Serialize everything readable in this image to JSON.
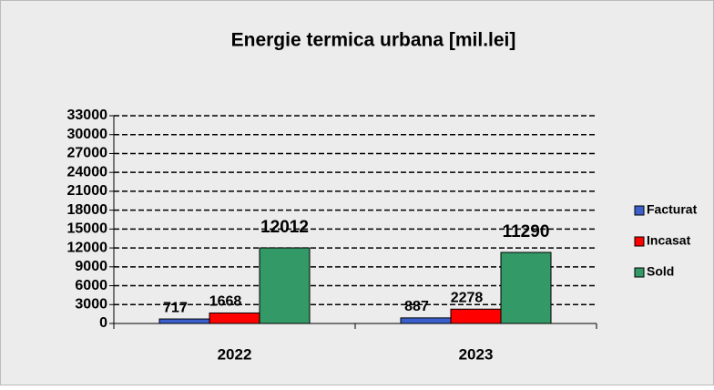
{
  "chart_data": {
    "type": "bar",
    "title": "Energie termica urbana [mil.lei]",
    "categories": [
      "2022",
      "2023"
    ],
    "series": [
      {
        "name": "Facturat",
        "color": "#3a5fcd",
        "values": [
          717,
          887
        ]
      },
      {
        "name": "Incasat",
        "color": "#ff0000",
        "values": [
          1668,
          2278
        ]
      },
      {
        "name": "Sold",
        "color": "#339966",
        "values": [
          12012,
          11290
        ]
      }
    ],
    "ylim": [
      0,
      33000
    ],
    "yticks": [
      0,
      3000,
      6000,
      9000,
      12000,
      15000,
      18000,
      21000,
      24000,
      27000,
      30000,
      33000
    ],
    "grid": true,
    "legend": "right"
  }
}
